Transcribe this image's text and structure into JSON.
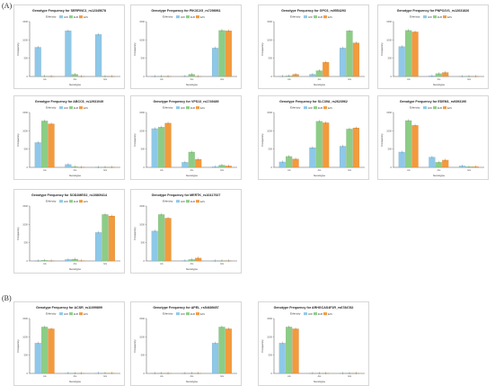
{
  "labels": {
    "a": "(A)",
    "b": "(B)"
  },
  "legend": {
    "title": "Ethnicity"
  },
  "colors": {
    "s0": "#8ec8e8",
    "s1": "#8ccd86",
    "s2": "#f39a3c",
    "axis": "#555555"
  },
  "common": {
    "xlabel": "Genotype",
    "ylabel": "Frequency"
  },
  "chart_data": [
    {
      "type": "bar",
      "title": "Genotype Frequency for SERPINC1_rs12345678",
      "categories": [
        "AA",
        "AG",
        "GG"
      ],
      "ylim": [
        0,
        1500
      ],
      "series": [
        {
          "name": "AFR",
          "values": [
            800,
            1250,
            1150
          ]
        },
        {
          "name": "EUR",
          "values": [
            10,
            60,
            5
          ]
        },
        {
          "name": "EAS",
          "values": [
            5,
            5,
            5
          ]
        }
      ]
    },
    {
      "type": "bar",
      "title": "Genotype Frequency for PIK3C2G_rs7298961",
      "categories": [
        "AA",
        "AG",
        "GG"
      ],
      "ylim": [
        0,
        1500
      ],
      "series": [
        {
          "name": "AFR",
          "values": [
            5,
            10,
            780
          ]
        },
        {
          "name": "EUR",
          "values": [
            5,
            60,
            1260
          ]
        },
        {
          "name": "EAS",
          "values": [
            5,
            5,
            1250
          ]
        }
      ]
    },
    {
      "type": "bar",
      "title": "Genotype Frequency for GPC6_rs9554293",
      "categories": [
        "AA",
        "AG",
        "GG"
      ],
      "ylim": [
        0,
        1500
      ],
      "series": [
        {
          "name": "AFR",
          "values": [
            10,
            60,
            780
          ]
        },
        {
          "name": "EUR",
          "values": [
            20,
            160,
            1250
          ]
        },
        {
          "name": "EAS",
          "values": [
            60,
            390,
            920
          ]
        }
      ]
    },
    {
      "type": "bar",
      "title": "Genotype Frequency for PNPO2V1_rs12631826",
      "categories": [
        "AA",
        "AG",
        "GG"
      ],
      "ylim": [
        0,
        1500
      ],
      "series": [
        {
          "name": "AFR",
          "values": [
            820,
            20,
            5
          ]
        },
        {
          "name": "EUR",
          "values": [
            1260,
            80,
            5
          ]
        },
        {
          "name": "EAS",
          "values": [
            1220,
            110,
            5
          ]
        }
      ]
    },
    {
      "type": "bar",
      "title": "Genotype Frequency for ABCC6_rs12931049",
      "categories": [
        "AA",
        "AG",
        "GG"
      ],
      "ylim": [
        0,
        1500
      ],
      "series": [
        {
          "name": "AFR",
          "values": [
            680,
            80,
            5
          ]
        },
        {
          "name": "EUR",
          "values": [
            1270,
            20,
            5
          ]
        },
        {
          "name": "EAS",
          "values": [
            1190,
            5,
            5
          ]
        }
      ]
    },
    {
      "type": "bar",
      "title": "Genotype Frequency for VPS13_rs1749489",
      "categories": [
        "AA",
        "AG",
        "GG"
      ],
      "ylim": [
        0,
        1500
      ],
      "series": [
        {
          "name": "AFR",
          "values": [
            1060,
            140,
            20
          ]
        },
        {
          "name": "EUR",
          "values": [
            1100,
            420,
            60
          ]
        },
        {
          "name": "EAS",
          "values": [
            1210,
            220,
            40
          ]
        }
      ]
    },
    {
      "type": "bar",
      "title": "Genotype Frequency for SLC39A_rs2623962",
      "categories": [
        "AA",
        "AG",
        "GG"
      ],
      "ylim": [
        0,
        1500
      ],
      "series": [
        {
          "name": "AFR",
          "values": [
            150,
            540,
            580
          ]
        },
        {
          "name": "EUR",
          "values": [
            300,
            1260,
            1050
          ]
        },
        {
          "name": "EAS",
          "values": [
            230,
            1220,
            1080
          ]
        }
      ]
    },
    {
      "type": "bar",
      "title": "Genotype Frequency for EDEM1_rs9393190",
      "categories": [
        "AA",
        "AG",
        "GG"
      ],
      "ylim": [
        0,
        1500
      ],
      "series": [
        {
          "name": "AFR",
          "values": [
            420,
            280,
            40
          ]
        },
        {
          "name": "EUR",
          "values": [
            1280,
            140,
            20
          ]
        },
        {
          "name": "EAS",
          "values": [
            1150,
            200,
            20
          ]
        }
      ]
    },
    {
      "type": "bar",
      "title": "Genotype Frequency for SOD2MEG2_rs10869414",
      "categories": [
        "AA",
        "AG",
        "GG"
      ],
      "ylim": [
        0,
        1500
      ],
      "series": [
        {
          "name": "AFR",
          "values": [
            5,
            40,
            780
          ]
        },
        {
          "name": "EUR",
          "values": [
            20,
            50,
            1270
          ]
        },
        {
          "name": "EAS",
          "values": [
            5,
            10,
            1230
          ]
        }
      ]
    },
    {
      "type": "bar",
      "title": "Genotype Frequency for MERTK_rs10417927",
      "categories": [
        "AA",
        "AG",
        "GG"
      ],
      "ylim": [
        0,
        1500
      ],
      "series": [
        {
          "name": "AFR",
          "values": [
            820,
            10,
            5
          ]
        },
        {
          "name": "EUR",
          "values": [
            1270,
            40,
            5
          ]
        },
        {
          "name": "EAS",
          "values": [
            1170,
            80,
            5
          ]
        }
      ]
    },
    {
      "type": "bar",
      "title": "Genotype Frequency for ACSR_rs11099899",
      "categories": [
        "AA",
        "AG",
        "GG"
      ],
      "ylim": [
        0,
        1500
      ],
      "series": [
        {
          "name": "AFR",
          "values": [
            830,
            10,
            10
          ]
        },
        {
          "name": "EUR",
          "values": [
            1270,
            5,
            10
          ]
        },
        {
          "name": "EAS",
          "values": [
            1220,
            5,
            10
          ]
        }
      ]
    },
    {
      "type": "bar",
      "title": "Genotype Frequency for APEL_rs54689457",
      "categories": [
        "AA",
        "AG",
        "GG"
      ],
      "ylim": [
        0,
        1500
      ],
      "series": [
        {
          "name": "AFR",
          "values": [
            5,
            5,
            830
          ]
        },
        {
          "name": "EUR",
          "values": [
            5,
            5,
            1270
          ]
        },
        {
          "name": "EAS",
          "values": [
            5,
            5,
            1220
          ]
        }
      ]
    },
    {
      "type": "bar",
      "title": "Genotype Frequency for ARHGCAS4F1R_rs6784782",
      "categories": [
        "AA",
        "AG",
        "GG"
      ],
      "ylim": [
        0,
        1500
      ],
      "series": [
        {
          "name": "AFR",
          "values": [
            830,
            5,
            5
          ]
        },
        {
          "name": "EUR",
          "values": [
            1270,
            5,
            5
          ]
        },
        {
          "name": "EAS",
          "values": [
            1220,
            5,
            5
          ]
        }
      ]
    }
  ]
}
